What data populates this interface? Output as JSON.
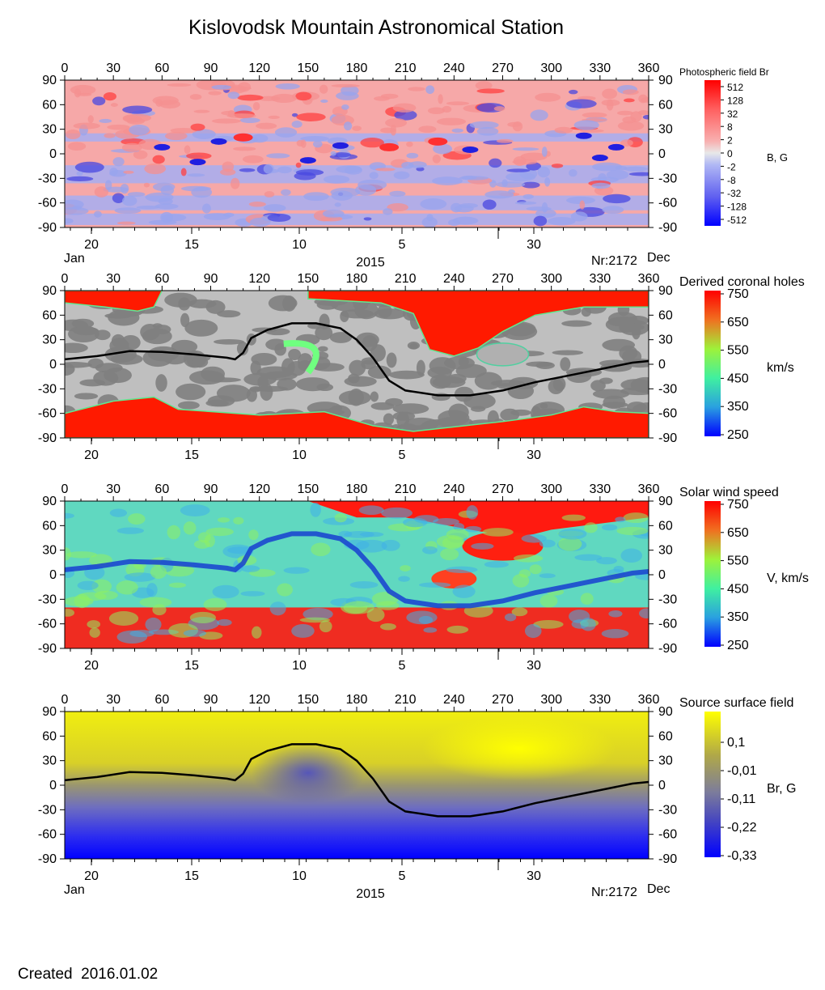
{
  "title": "Kislovodsk Mountain Astronomical Station",
  "created": "Created  2016.01.02",
  "colors": {
    "red": "#ff0000",
    "pink": "#f79a9a",
    "blue": "#2a2ad8",
    "lightblue": "#a8b4f0",
    "gray_light": "#bfbfbf",
    "gray_dark": "#808080",
    "yellow": "#ffff00",
    "navy": "#3a3ab0"
  },
  "chart_data": [
    {
      "type": "heatmap",
      "name": "photospheric",
      "legend_title": "Photospheric field Br",
      "colorbar_label": "B, G",
      "colorbar_ticks": [
        "512",
        "128",
        "32",
        "8",
        "2",
        "0",
        "-2",
        "-8",
        "-32",
        "-128",
        "-512"
      ],
      "x_ticks": [
        "0",
        "30",
        "60",
        "90",
        "120",
        "150",
        "180",
        "210",
        "240",
        "270",
        "300",
        "330",
        "360"
      ],
      "y_ticks": [
        "90",
        "60",
        "30",
        "0",
        "-30",
        "-60",
        "-90"
      ],
      "xlim": [
        0,
        360
      ],
      "ylim": [
        -90,
        90
      ],
      "date_ticks": [
        "20",
        "15",
        "10",
        "5",
        "30"
      ],
      "month_left": "Jan",
      "month_right": "Dec",
      "year": "2015",
      "rotation": "Nr:2172"
    },
    {
      "type": "heatmap",
      "name": "coronal_holes",
      "legend_title": "Derived coronal holes",
      "colorbar_label": "km/s",
      "colorbar_ticks": [
        "750",
        "650",
        "550",
        "450",
        "350",
        "250"
      ],
      "x_ticks": [
        "0",
        "30",
        "60",
        "90",
        "120",
        "150",
        "180",
        "210",
        "240",
        "270",
        "300",
        "330",
        "360"
      ],
      "y_ticks": [
        "90",
        "60",
        "30",
        "0",
        "-30",
        "-60",
        "-90"
      ],
      "xlim": [
        0,
        360
      ],
      "ylim": [
        -90,
        90
      ],
      "date_ticks": [
        "20",
        "15",
        "10",
        "5",
        "30"
      ],
      "neutral_line": [
        [
          0,
          6
        ],
        [
          20,
          10
        ],
        [
          40,
          16
        ],
        [
          60,
          15
        ],
        [
          80,
          12
        ],
        [
          100,
          8
        ],
        [
          105,
          6
        ],
        [
          110,
          14
        ],
        [
          115,
          32
        ],
        [
          125,
          42
        ],
        [
          140,
          50
        ],
        [
          155,
          50
        ],
        [
          170,
          44
        ],
        [
          180,
          30
        ],
        [
          190,
          8
        ],
        [
          200,
          -20
        ],
        [
          210,
          -32
        ],
        [
          230,
          -38
        ],
        [
          250,
          -38
        ],
        [
          270,
          -32
        ],
        [
          290,
          -22
        ],
        [
          310,
          -14
        ],
        [
          330,
          -6
        ],
        [
          350,
          2
        ],
        [
          360,
          4
        ]
      ]
    },
    {
      "type": "heatmap",
      "name": "solar_wind",
      "legend_title": "Solar wind speed",
      "colorbar_label": "V, km/s",
      "colorbar_ticks": [
        "750",
        "650",
        "550",
        "450",
        "350",
        "250"
      ],
      "x_ticks": [
        "0",
        "30",
        "60",
        "90",
        "120",
        "150",
        "180",
        "210",
        "240",
        "270",
        "300",
        "330",
        "360"
      ],
      "y_ticks": [
        "90",
        "60",
        "30",
        "0",
        "-30",
        "-60",
        "-90"
      ],
      "xlim": [
        0,
        360
      ],
      "ylim": [
        -90,
        90
      ],
      "date_ticks": [
        "20",
        "15",
        "10",
        "5",
        "30"
      ]
    },
    {
      "type": "heatmap",
      "name": "source_surface",
      "legend_title": "Source surface field",
      "colorbar_label": "Br, G",
      "colorbar_ticks": [
        "0,1",
        "-0,01",
        "-0,11",
        "-0,22",
        "-0,33"
      ],
      "x_ticks": [
        "0",
        "30",
        "60",
        "90",
        "120",
        "150",
        "180",
        "210",
        "240",
        "270",
        "300",
        "330",
        "360"
      ],
      "y_ticks": [
        "90",
        "60",
        "30",
        "0",
        "-30",
        "-60",
        "-90"
      ],
      "xlim": [
        0,
        360
      ],
      "ylim": [
        -90,
        90
      ],
      "date_ticks": [
        "20",
        "15",
        "10",
        "5",
        "30"
      ],
      "month_left": "Jan",
      "month_right": "Dec",
      "year": "2015",
      "rotation": "Nr:2172",
      "neutral_line": [
        [
          0,
          6
        ],
        [
          20,
          10
        ],
        [
          40,
          16
        ],
        [
          60,
          15
        ],
        [
          80,
          12
        ],
        [
          100,
          8
        ],
        [
          105,
          6
        ],
        [
          110,
          14
        ],
        [
          115,
          32
        ],
        [
          125,
          42
        ],
        [
          140,
          50
        ],
        [
          155,
          50
        ],
        [
          170,
          44
        ],
        [
          180,
          30
        ],
        [
          190,
          8
        ],
        [
          200,
          -20
        ],
        [
          210,
          -32
        ],
        [
          230,
          -38
        ],
        [
          250,
          -38
        ],
        [
          270,
          -32
        ],
        [
          290,
          -22
        ],
        [
          310,
          -14
        ],
        [
          330,
          -6
        ],
        [
          350,
          2
        ],
        [
          360,
          4
        ]
      ]
    }
  ]
}
